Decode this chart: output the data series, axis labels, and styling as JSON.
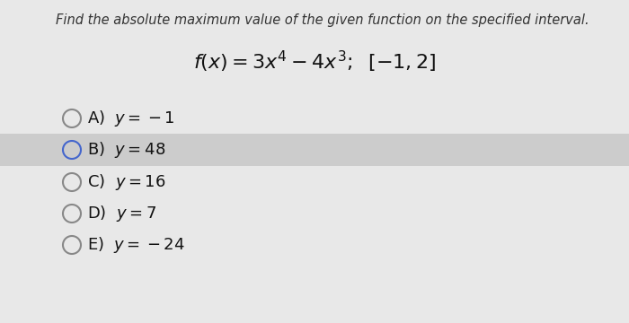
{
  "title": "Find the absolute maximum value of the given function on the specified interval.",
  "function_label": "$f(x) = 3x^4 - 4x^3;\\;\\; [-1, 2]$",
  "options": [
    {
      "letter": "A",
      "text": "$y = -1$",
      "highlighted": false,
      "circle_color": "#888888"
    },
    {
      "letter": "B",
      "text": "$y = 48$",
      "highlighted": true,
      "circle_color": "#4466cc"
    },
    {
      "letter": "C",
      "text": "$y = 16$",
      "highlighted": false,
      "circle_color": "#888888"
    },
    {
      "letter": "D",
      "text": "$y = 7$",
      "highlighted": false,
      "circle_color": "#888888"
    },
    {
      "letter": "E",
      "text": "$y = -24$",
      "highlighted": false,
      "circle_color": "#888888"
    }
  ],
  "highlight_color": "#cccccc",
  "fig_bg": "#e8e8e8",
  "title_fontsize": 10.5,
  "func_fontsize": 16,
  "option_fontsize": 13
}
